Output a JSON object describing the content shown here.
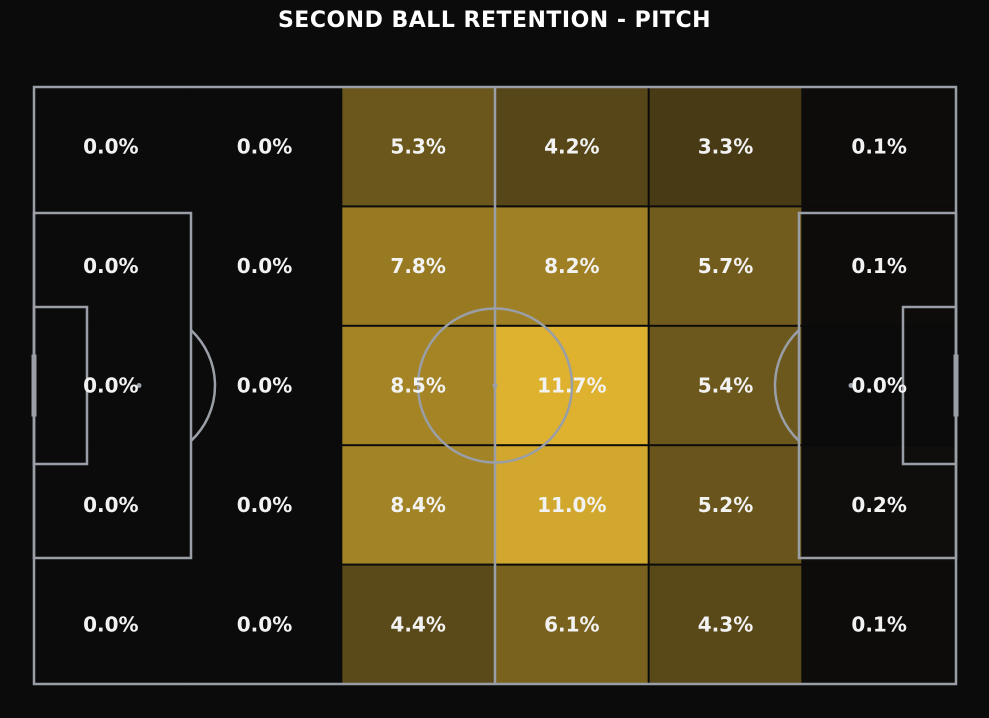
{
  "title": "SECOND BALL RETENTION - PITCH",
  "colors": {
    "background": "#0b0b0b",
    "pitch_lines": "#9a9ea6",
    "heat_low": "#0b0b0b",
    "heat_high": "#deb22f",
    "label": "#f2f2f2"
  },
  "chart_data": {
    "type": "heatmap",
    "title": "SECOND BALL RETENTION - PITCH",
    "columns": 6,
    "rows": 5,
    "value_format": "percent",
    "values": [
      [
        0.0,
        0.0,
        5.3,
        4.2,
        3.3,
        0.1
      ],
      [
        0.0,
        0.0,
        7.8,
        8.2,
        5.7,
        0.1
      ],
      [
        0.0,
        0.0,
        8.5,
        11.7,
        5.4,
        0.0
      ],
      [
        0.0,
        0.0,
        8.4,
        11.0,
        5.2,
        0.2
      ],
      [
        0.0,
        0.0,
        4.4,
        6.1,
        4.3,
        0.1
      ]
    ],
    "labels": [
      [
        "0.0%",
        "0.0%",
        "5.3%",
        "4.2%",
        "3.3%",
        "0.1%"
      ],
      [
        "0.0%",
        "0.0%",
        "7.8%",
        "8.2%",
        "5.7%",
        "0.1%"
      ],
      [
        "0.0%",
        "0.0%",
        "8.5%",
        "11.7%",
        "5.4%",
        "0.0%"
      ],
      [
        "0.0%",
        "0.0%",
        "8.4%",
        "11.0%",
        "5.2%",
        "0.2%"
      ],
      [
        "0.0%",
        "0.0%",
        "4.4%",
        "6.1%",
        "4.3%",
        "0.1%"
      ]
    ],
    "color_scale": {
      "min": 0.0,
      "max": 11.7
    }
  }
}
